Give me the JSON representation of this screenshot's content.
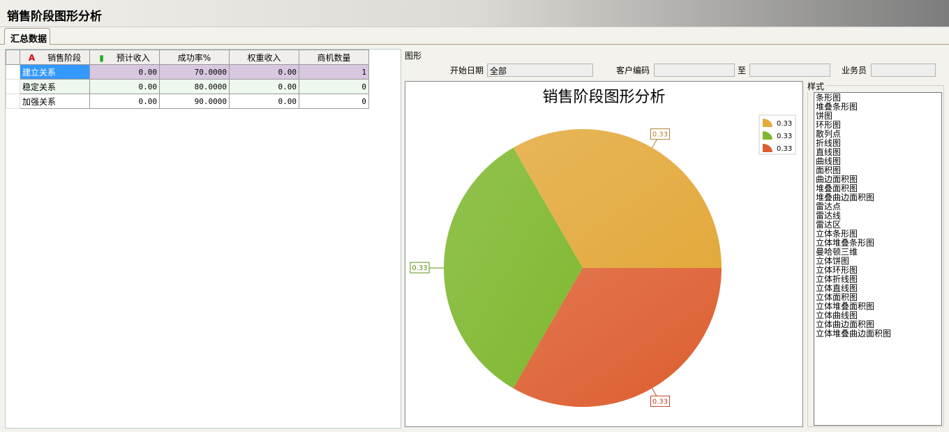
{
  "window": {
    "title": "销售阶段图形分析"
  },
  "tabs": [
    {
      "label": "汇总数据"
    }
  ],
  "table": {
    "headers": [
      "销售阶段",
      "预计收入",
      "成功率%",
      "权重收入",
      "商机数量"
    ],
    "rows": [
      [
        "建立关系",
        "0.00",
        "70.0000",
        "0.00",
        "1"
      ],
      [
        "稳定关系",
        "0.00",
        "80.0000",
        "0.00",
        "0"
      ],
      [
        "加强关系",
        "0.00",
        "90.0000",
        "0.00",
        "0"
      ]
    ]
  },
  "chart_panel": {
    "title": "图形",
    "filters": {
      "start_date_label": "开始日期",
      "start_date_value": "全部",
      "customer_code_label": "客户编码",
      "customer_code_value": "",
      "to_label": "至",
      "to_value": "",
      "salesperson_label": "业务员",
      "salesperson_value": ""
    },
    "style_label": "样式",
    "styles": [
      "条形图",
      "堆叠条形图",
      "饼图",
      "环形图",
      "散列点",
      "折线图",
      "直线图",
      "曲线图",
      "面积图",
      "曲边面积图",
      "堆叠面积图",
      "堆叠曲边面积图",
      "雷达点",
      "雷达线",
      "雷达区",
      "立体条形图",
      "立体堆叠条形图",
      "曼哈顿三维",
      "立体饼图",
      "立体环形图",
      "立体折线图",
      "立体直线图",
      "立体面积图",
      "立体堆叠面积图",
      "立体曲线图",
      "立体曲边面积图",
      "立体堆叠曲边面积图"
    ],
    "selected_style": "饼图"
  },
  "chart_data": {
    "type": "pie",
    "title": "销售阶段图形分析",
    "slices": [
      {
        "label": "0.33",
        "value": 0.33,
        "color": "#e3a93c",
        "label_color": "#b08030"
      },
      {
        "label": "0.33",
        "value": 0.33,
        "color": "#7fb830",
        "label_color": "#5a9010"
      },
      {
        "label": "0.33",
        "value": 0.33,
        "color": "#dd5e30",
        "label_color": "#c04020"
      }
    ],
    "legend": {
      "entries": [
        "0.33",
        "0.33",
        "0.33"
      ],
      "position": "top-right"
    }
  }
}
